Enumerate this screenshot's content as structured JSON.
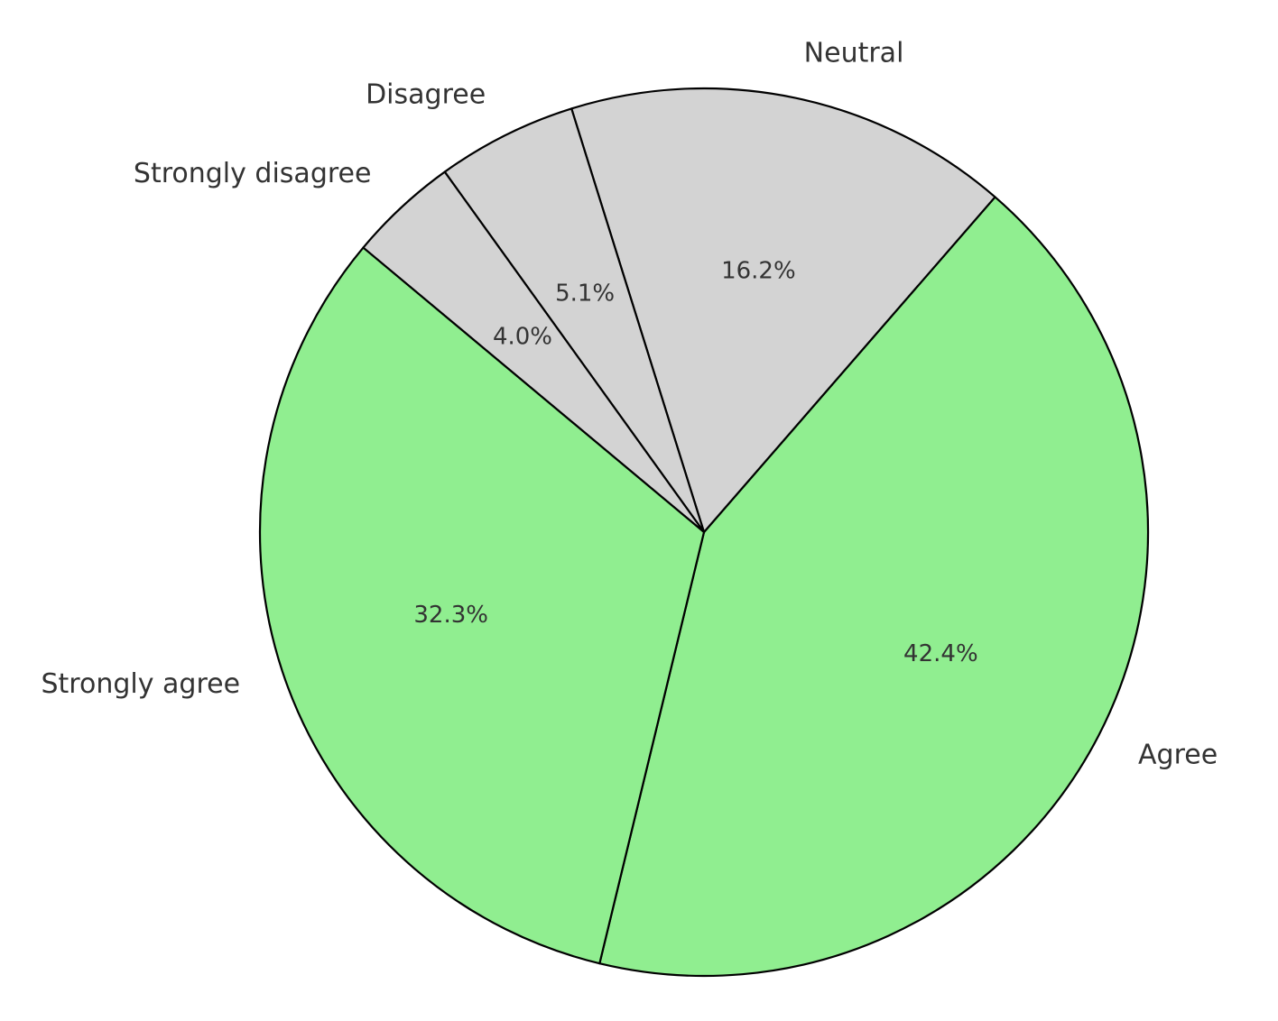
{
  "chart_data": {
    "type": "pie",
    "categories": [
      "Agree",
      "Neutral",
      "Disagree",
      "Strongly disagree",
      "Strongly agree"
    ],
    "values": [
      42.4,
      16.2,
      5.1,
      4.0,
      32.3
    ],
    "value_labels": [
      "42.4%",
      "16.2%",
      "5.1%",
      "4.0%",
      "32.3%"
    ],
    "colors": [
      "#90ee90",
      "#d3d3d3",
      "#d3d3d3",
      "#d3d3d3",
      "#90ee90"
    ]
  }
}
